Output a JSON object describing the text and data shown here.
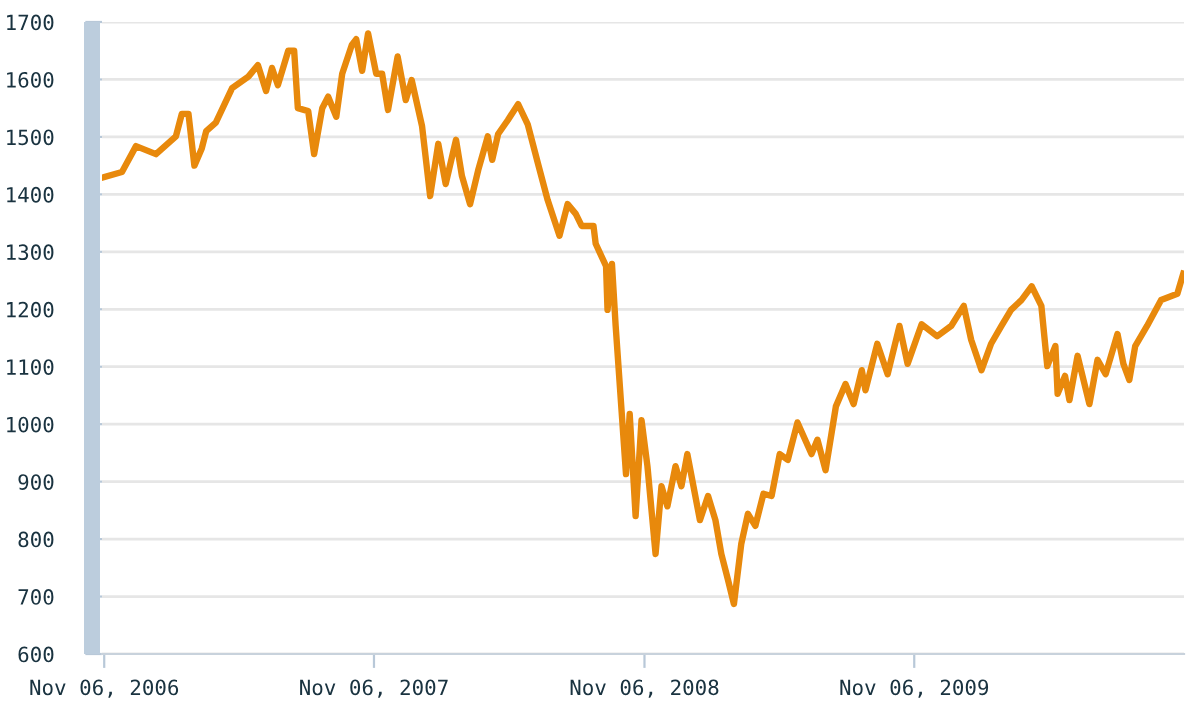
{
  "chart_data": {
    "type": "line",
    "color": "#e8890c",
    "grid": "y",
    "marker": "none",
    "line_style": "solid",
    "xlim": [
      "2006-11-03",
      "2010-11-06"
    ],
    "ylim": [
      600,
      1700
    ],
    "yticks": [
      600,
      700,
      800,
      900,
      1000,
      1100,
      1200,
      1300,
      1400,
      1500,
      1600,
      1700
    ],
    "xticks": [
      {
        "value": "2006-11-06",
        "label": "Nov 06, 2006"
      },
      {
        "value": "2007-11-06",
        "label": "Nov 06, 2007"
      },
      {
        "value": "2008-11-06",
        "label": "Nov 06, 2008"
      },
      {
        "value": "2009-11-06",
        "label": "Nov 06, 2009"
      }
    ],
    "x": [
      "2006-11-06",
      "2006-11-30",
      "2006-12-19",
      "2007-01-15",
      "2007-02-11",
      "2007-02-19",
      "2007-02-28",
      "2007-03-08",
      "2007-03-18",
      "2007-03-24",
      "2007-04-06",
      "2007-04-28",
      "2007-05-20",
      "2007-06-02",
      "2007-06-13",
      "2007-06-21",
      "2007-06-29",
      "2007-07-13",
      "2007-07-21",
      "2007-07-26",
      "2007-08-09",
      "2007-08-17",
      "2007-08-28",
      "2007-09-05",
      "2007-09-16",
      "2007-09-24",
      "2007-10-07",
      "2007-10-13",
      "2007-10-21",
      "2007-10-29",
      "2007-11-09",
      "2007-11-17",
      "2007-11-25",
      "2007-12-08",
      "2007-12-19",
      "2007-12-27",
      "2008-01-10",
      "2008-01-21",
      "2008-02-01",
      "2008-02-11",
      "2008-02-25",
      "2008-03-04",
      "2008-03-15",
      "2008-03-26",
      "2008-04-08",
      "2008-04-14",
      "2008-04-22",
      "2008-05-05",
      "2008-05-19",
      "2008-06-01",
      "2008-06-15",
      "2008-06-28",
      "2008-07-14",
      "2008-07-25",
      "2008-08-05",
      "2008-08-13",
      "2008-08-29",
      "2008-09-01",
      "2008-09-15",
      "2008-09-17",
      "2008-09-23",
      "2008-09-28",
      "2008-10-12",
      "2008-10-17",
      "2008-10-25",
      "2008-11-02",
      "2008-11-10",
      "2008-11-21",
      "2008-11-29",
      "2008-12-07",
      "2008-12-18",
      "2008-12-26",
      "2009-01-03",
      "2009-01-20",
      "2009-01-31",
      "2009-02-10",
      "2009-02-18",
      "2009-02-27",
      "2009-03-07",
      "2009-03-17",
      "2009-03-26",
      "2009-04-05",
      "2009-04-16",
      "2009-04-27",
      "2009-05-08",
      "2009-05-19",
      "2009-06-01",
      "2009-06-20",
      "2009-06-28",
      "2009-07-09",
      "2009-07-23",
      "2009-08-05",
      "2009-08-16",
      "2009-08-27",
      "2009-09-01",
      "2009-09-17",
      "2009-10-01",
      "2009-10-17",
      "2009-10-28",
      "2009-11-16",
      "2009-12-07",
      "2009-12-26",
      "2010-01-12",
      "2010-01-22",
      "2010-02-05",
      "2010-02-18",
      "2010-03-04",
      "2010-03-17",
      "2010-03-31",
      "2010-04-14",
      "2010-04-27",
      "2010-05-05",
      "2010-05-16",
      "2010-05-19",
      "2010-05-29",
      "2010-06-04",
      "2010-06-15",
      "2010-07-01",
      "2010-07-12",
      "2010-07-23",
      "2010-08-08",
      "2010-08-16",
      "2010-08-24",
      "2010-09-01",
      "2010-09-17",
      "2010-10-06",
      "2010-10-28",
      "2010-11-05"
    ],
    "values": [
      1430,
      1439,
      1484,
      1470,
      1501,
      1540,
      1540,
      1450,
      1480,
      1510,
      1525,
      1585,
      1605,
      1625,
      1580,
      1620,
      1590,
      1650,
      1650,
      1550,
      1545,
      1470,
      1550,
      1570,
      1535,
      1610,
      1660,
      1670,
      1615,
      1680,
      1610,
      1610,
      1547,
      1640,
      1564,
      1599,
      1519,
      1397,
      1488,
      1418,
      1495,
      1432,
      1383,
      1442,
      1501,
      1460,
      1505,
      1529,
      1557,
      1522,
      1453,
      1390,
      1328,
      1383,
      1366,
      1345,
      1345,
      1314,
      1275,
      1199,
      1279,
      1171,
      913,
      1018,
      840,
      1007,
      927,
      774,
      892,
      857,
      927,
      892,
      948,
      833,
      875,
      833,
      774,
      729,
      687,
      792,
      844,
      823,
      879,
      875,
      948,
      938,
      1003,
      948,
      973,
      920,
      1031,
      1070,
      1035,
      1094,
      1059,
      1140,
      1087,
      1171,
      1105,
      1174,
      1153,
      1171,
      1206,
      1147,
      1094,
      1140,
      1171,
      1199,
      1216,
      1240,
      1206,
      1101,
      1136,
      1053,
      1084,
      1042,
      1119,
      1035,
      1112,
      1087,
      1157,
      1105,
      1077,
      1136,
      1171,
      1216,
      1227,
      1262
    ]
  }
}
